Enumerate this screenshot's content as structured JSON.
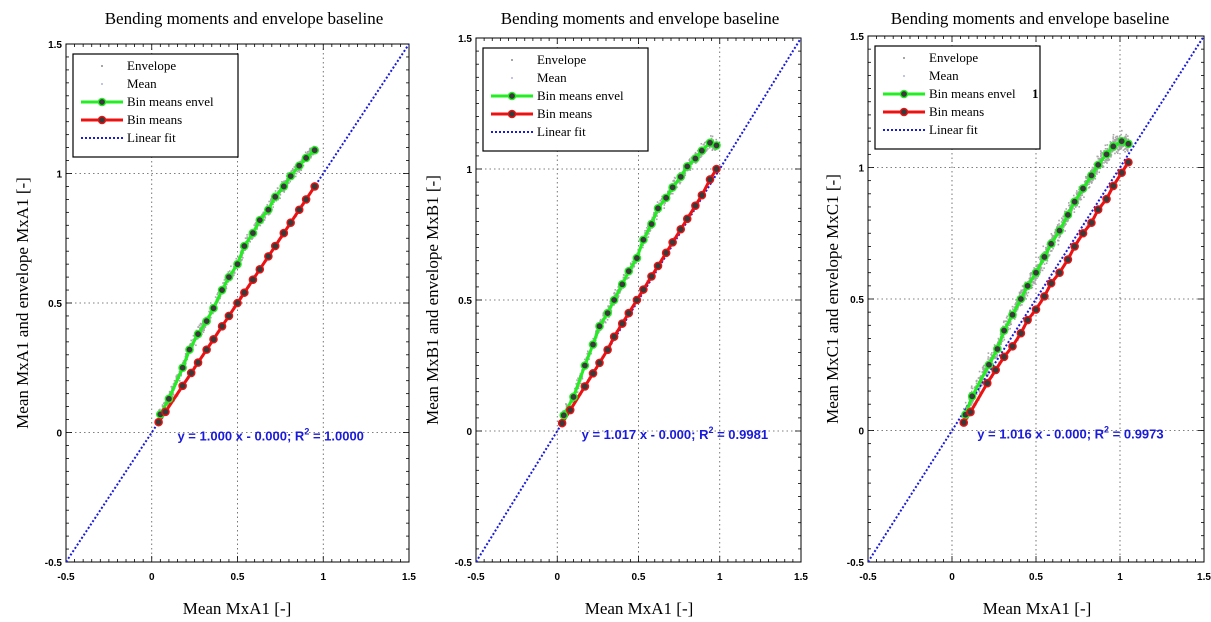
{
  "colors": {
    "envelope": "#a6a6a6",
    "mean": "#c3c3e8",
    "bin_means_envel": "#22ee22",
    "bin_means": "#ee1111",
    "linear_fit": "#1a1adc",
    "marker_fill": "#3a3a3a"
  },
  "chart_data": [
    {
      "type": "scatter",
      "title": "Bending moments and envelope baseline",
      "xlabel": "Mean MxA1 [-]",
      "ylabel": "Mean MxA1  and envelope MxA1 [-]",
      "xlim": [
        -0.5,
        1.5
      ],
      "ylim": [
        -0.5,
        1.5
      ],
      "grid": true,
      "legend_position": "top-left",
      "x_ticks": [
        "-0.5",
        "0",
        "0.5",
        "1",
        "1.5"
      ],
      "y_ticks": [
        "-0.5",
        "0",
        "0.5",
        "1",
        "1.5"
      ],
      "legend": [
        "Envelope",
        "Mean",
        "Bin means envel",
        "Bin means",
        "Linear fit"
      ],
      "annotation": "y =  1.000 x -  0.000;   R",
      "annotation_sup": "2",
      "annotation_tail": " = 1.0000",
      "fit": {
        "slope": 1.0,
        "intercept": 0.0
      },
      "series": [
        {
          "name": "Bin means envel",
          "x": [
            0.05,
            0.1,
            0.18,
            0.22,
            0.27,
            0.32,
            0.36,
            0.41,
            0.45,
            0.5,
            0.54,
            0.59,
            0.63,
            0.68,
            0.72,
            0.77,
            0.81,
            0.86,
            0.9,
            0.95
          ],
          "y": [
            0.07,
            0.13,
            0.25,
            0.32,
            0.38,
            0.43,
            0.48,
            0.55,
            0.6,
            0.65,
            0.72,
            0.77,
            0.82,
            0.86,
            0.91,
            0.95,
            0.99,
            1.03,
            1.06,
            1.09
          ]
        },
        {
          "name": "Bin means",
          "x": [
            0.04,
            0.08,
            0.18,
            0.23,
            0.27,
            0.32,
            0.36,
            0.41,
            0.45,
            0.5,
            0.54,
            0.59,
            0.63,
            0.68,
            0.72,
            0.77,
            0.81,
            0.86,
            0.9,
            0.95
          ],
          "y": [
            0.04,
            0.08,
            0.18,
            0.23,
            0.27,
            0.32,
            0.36,
            0.41,
            0.45,
            0.5,
            0.54,
            0.59,
            0.63,
            0.68,
            0.72,
            0.77,
            0.81,
            0.86,
            0.9,
            0.95
          ]
        }
      ]
    },
    {
      "type": "scatter",
      "title": "Bending moments and envelope baseline",
      "xlabel": "Mean MxA1 [-]",
      "ylabel": "Mean MxB1 and envelope MxB1 [-]",
      "xlim": [
        -0.5,
        1.5
      ],
      "ylim": [
        -0.5,
        1.5
      ],
      "grid": true,
      "legend_position": "top-left",
      "x_ticks": [
        "-0.5",
        "0",
        "0.5",
        "1",
        "1.5"
      ],
      "y_ticks": [
        "-0.5",
        "0",
        "0.5",
        "1",
        "1.5"
      ],
      "legend": [
        "Envelope",
        "Mean",
        "Bin means envel",
        "Bin means",
        "Linear fit"
      ],
      "annotation": "y =  1.017 x -  0.000;   R",
      "annotation_sup": "2",
      "annotation_tail": " = 0.9981",
      "fit": {
        "slope": 1.0,
        "intercept": 0.0
      },
      "series": [
        {
          "name": "Bin means envel",
          "x": [
            0.04,
            0.1,
            0.17,
            0.22,
            0.26,
            0.31,
            0.35,
            0.4,
            0.44,
            0.49,
            0.53,
            0.58,
            0.62,
            0.67,
            0.71,
            0.76,
            0.8,
            0.85,
            0.89,
            0.94,
            0.98
          ],
          "y": [
            0.06,
            0.13,
            0.25,
            0.33,
            0.4,
            0.45,
            0.5,
            0.56,
            0.61,
            0.66,
            0.73,
            0.79,
            0.85,
            0.89,
            0.93,
            0.97,
            1.01,
            1.04,
            1.07,
            1.1,
            1.09
          ]
        },
        {
          "name": "Bin means",
          "x": [
            0.03,
            0.08,
            0.17,
            0.22,
            0.26,
            0.31,
            0.35,
            0.4,
            0.44,
            0.49,
            0.53,
            0.58,
            0.62,
            0.67,
            0.71,
            0.76,
            0.8,
            0.85,
            0.89,
            0.94,
            0.98
          ],
          "y": [
            0.03,
            0.08,
            0.17,
            0.22,
            0.26,
            0.31,
            0.36,
            0.41,
            0.45,
            0.5,
            0.54,
            0.59,
            0.63,
            0.68,
            0.72,
            0.77,
            0.81,
            0.86,
            0.9,
            0.96,
            1.0
          ]
        }
      ]
    },
    {
      "type": "scatter",
      "title": "Bending moments and envelope baseline",
      "xlabel": "Mean MxA1 [-]",
      "ylabel": "Mean MxC1 and envelope MxC1 [-]",
      "xlim": [
        -0.5,
        1.5
      ],
      "ylim": [
        -0.5,
        1.5
      ],
      "grid": true,
      "legend_position": "top-left",
      "x_ticks": [
        "-0.5",
        "0",
        "0.5",
        "1",
        "1.5"
      ],
      "y_ticks": [
        "-0.5",
        "0",
        "0.5",
        "1",
        "1.5"
      ],
      "legend": [
        "Envelope",
        "Mean",
        "Bin means envel",
        "Bin means",
        "Linear fit"
      ],
      "legend_extra": "1",
      "annotation": "y =  1.016 x -  0.000;   R",
      "annotation_sup": "2",
      "annotation_tail": " = 0.9973",
      "fit": {
        "slope": 1.0,
        "intercept": 0.0
      },
      "series": [
        {
          "name": "Bin means envel",
          "x": [
            0.08,
            0.12,
            0.22,
            0.27,
            0.31,
            0.36,
            0.41,
            0.45,
            0.5,
            0.55,
            0.59,
            0.64,
            0.69,
            0.73,
            0.78,
            0.83,
            0.87,
            0.92,
            0.96,
            1.01,
            1.05
          ],
          "y": [
            0.06,
            0.13,
            0.25,
            0.31,
            0.38,
            0.44,
            0.5,
            0.55,
            0.6,
            0.66,
            0.71,
            0.76,
            0.82,
            0.87,
            0.92,
            0.97,
            1.01,
            1.05,
            1.08,
            1.1,
            1.09
          ]
        },
        {
          "name": "Bin means",
          "x": [
            0.07,
            0.11,
            0.21,
            0.26,
            0.31,
            0.36,
            0.41,
            0.45,
            0.5,
            0.55,
            0.59,
            0.64,
            0.69,
            0.73,
            0.78,
            0.83,
            0.87,
            0.92,
            0.96,
            1.01,
            1.05
          ],
          "y": [
            0.03,
            0.07,
            0.18,
            0.23,
            0.28,
            0.32,
            0.37,
            0.42,
            0.46,
            0.51,
            0.56,
            0.6,
            0.65,
            0.7,
            0.75,
            0.79,
            0.84,
            0.88,
            0.93,
            0.98,
            1.02
          ]
        }
      ]
    }
  ]
}
